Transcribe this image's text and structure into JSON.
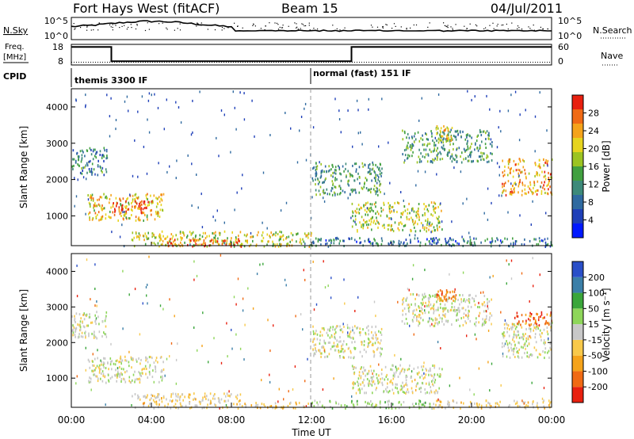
{
  "header": {
    "title": "Fort Hays West (fitACF)",
    "beam": "Beam 15",
    "date": "04/Jul/2011"
  },
  "noise_panel": {
    "left_label": "N.Sky",
    "left_ticks": [
      "10^5",
      "10^0"
    ],
    "right_label": "N.Search",
    "right_ticks": [
      "10^5",
      "10^0"
    ]
  },
  "freq_panel": {
    "left_label_line1": "Freq.",
    "left_label_line2": "[MHz]",
    "left_ticks": [
      "18",
      "8"
    ],
    "right_label": "Nave",
    "right_ticks": [
      "60",
      "0"
    ],
    "freq_steps_hours": [
      0,
      2,
      14,
      24
    ],
    "freq_values_mhz": [
      16.5,
      8.2,
      16.5
    ],
    "nave_level": 8
  },
  "cpid": {
    "label": "CPID",
    "segments": [
      {
        "label": "themis 3300 IF",
        "start_hour": 0
      },
      {
        "label": "normal (fast) 151 IF",
        "start_hour": 12
      }
    ]
  },
  "x_axis": {
    "label": "Time UT",
    "ticks": [
      "00:00",
      "04:00",
      "08:00",
      "12:00",
      "16:00",
      "20:00",
      "00:00"
    ],
    "tick_hours": [
      0,
      4,
      8,
      12,
      16,
      20,
      24
    ],
    "range_hours": [
      0,
      24
    ]
  },
  "chart_data": [
    {
      "type": "heatmap",
      "name": "power",
      "ylabel": "Slant Range [km]",
      "ylim": [
        180,
        4500
      ],
      "yticks": [
        1000,
        2000,
        3000,
        4000
      ],
      "colorbar": {
        "label": "Power [dB]",
        "ticks": [
          "28",
          "24",
          "20",
          "16",
          "12",
          "8",
          "4"
        ],
        "range": [
          0,
          30
        ],
        "colors": [
          "#0018ff",
          "#1e3fb8",
          "#2f6aa0",
          "#3d8a7a",
          "#41a040",
          "#9cc422",
          "#e6d41e",
          "#f5a31a",
          "#f06a14",
          "#e8200f"
        ]
      },
      "regions": [
        {
          "t0": 0.0,
          "t1": 1.8,
          "r0": 2150,
          "r1": 2900,
          "val": 10
        },
        {
          "t0": 0.8,
          "t1": 4.6,
          "r0": 900,
          "r1": 1650,
          "val": 20
        },
        {
          "t0": 2.0,
          "t1": 4.0,
          "r0": 1100,
          "r1": 1500,
          "val": 26
        },
        {
          "t0": 3.0,
          "t1": 12.0,
          "r0": 180,
          "r1": 600,
          "val": 18
        },
        {
          "t0": 4.5,
          "t1": 8.5,
          "r0": 180,
          "r1": 400,
          "val": 26
        },
        {
          "t0": 12.0,
          "t1": 24.0,
          "r0": 180,
          "r1": 420,
          "val": 8
        },
        {
          "t0": 12.0,
          "t1": 15.5,
          "r0": 1600,
          "r1": 2500,
          "val": 12
        },
        {
          "t0": 14.0,
          "t1": 18.5,
          "r0": 600,
          "r1": 1400,
          "val": 18
        },
        {
          "t0": 16.5,
          "t1": 21.0,
          "r0": 2500,
          "r1": 3400,
          "val": 12
        },
        {
          "t0": 18.2,
          "t1": 19.0,
          "r0": 3100,
          "r1": 3500,
          "val": 20
        },
        {
          "t0": 21.5,
          "t1": 24.0,
          "r0": 1600,
          "r1": 2600,
          "val": 22
        }
      ]
    },
    {
      "type": "heatmap",
      "name": "velocity",
      "ylabel": "Slant Range [km]",
      "ylim": [
        180,
        4500
      ],
      "yticks": [
        1000,
        2000,
        3000,
        4000
      ],
      "colorbar": {
        "label": "Velocity [m s⁻¹]",
        "ticks": [
          "200",
          "100",
          "50",
          "15",
          "-15",
          "-50",
          "-100",
          "-200"
        ],
        "range": [
          -250,
          250
        ],
        "colors": [
          "#e8200f",
          "#f06a14",
          "#f5a31a",
          "#f8c94a",
          "#c8c8c8",
          "#8ed65a",
          "#3aa63a",
          "#3b7fa8",
          "#2a4fc8"
        ]
      },
      "regions": [
        {
          "t0": 0.0,
          "t1": 1.8,
          "r0": 2150,
          "r1": 2900,
          "val": 0
        },
        {
          "t0": 0.8,
          "t1": 4.6,
          "r0": 900,
          "r1": 1650,
          "val": 0
        },
        {
          "t0": 3.0,
          "t1": 8.5,
          "r0": 180,
          "r1": 600,
          "val": -40
        },
        {
          "t0": 8.5,
          "t1": 12.0,
          "r0": 180,
          "r1": 350,
          "val": -60
        },
        {
          "t0": 12.0,
          "t1": 18.0,
          "r0": 180,
          "r1": 400,
          "val": 40
        },
        {
          "t0": 18.0,
          "t1": 24.0,
          "r0": 180,
          "r1": 400,
          "val": -40
        },
        {
          "t0": 12.0,
          "t1": 15.5,
          "r0": 1600,
          "r1": 2500,
          "val": 0
        },
        {
          "t0": 14.0,
          "t1": 18.5,
          "r0": 600,
          "r1": 1400,
          "val": 0
        },
        {
          "t0": 16.5,
          "t1": 21.0,
          "r0": 2500,
          "r1": 3400,
          "val": 0
        },
        {
          "t0": 18.2,
          "t1": 19.2,
          "r0": 3200,
          "r1": 3500,
          "val": -150
        },
        {
          "t0": 21.5,
          "t1": 24.0,
          "r0": 1600,
          "r1": 2600,
          "val": 0
        },
        {
          "t0": 22.0,
          "t1": 24.0,
          "r0": 2500,
          "r1": 2900,
          "val": -170
        }
      ]
    }
  ]
}
